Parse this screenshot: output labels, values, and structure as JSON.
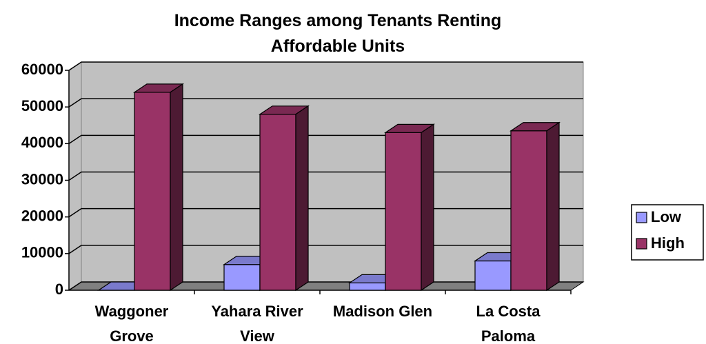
{
  "chart_data": {
    "type": "bar3d",
    "title": "Income Ranges among Tenants Renting Affordable Units",
    "categories": [
      "Waggoner Grove",
      "Yahara River View",
      "Madison Glen",
      "La Costa Paloma"
    ],
    "series": [
      {
        "name": "Low",
        "color": "#9999ff",
        "values": [
          0,
          7000,
          2000,
          8000
        ]
      },
      {
        "name": "High",
        "color": "#993366",
        "values": [
          54000,
          48000,
          43000,
          43500
        ]
      }
    ],
    "ylim": [
      0,
      60000
    ],
    "yticks": [
      0,
      10000,
      20000,
      30000,
      40000,
      50000,
      60000
    ],
    "grid": true,
    "legend": "right"
  }
}
